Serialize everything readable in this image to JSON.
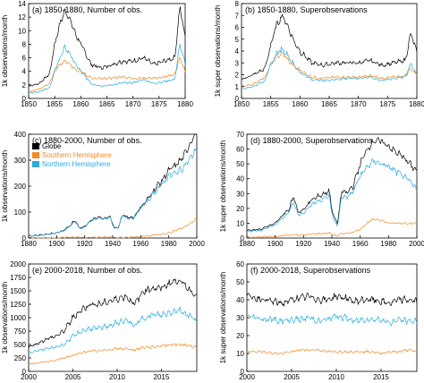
{
  "figure": {
    "legend": [
      {
        "label": "Globe",
        "color": "#000000"
      },
      {
        "label": "Southern Hemisphere",
        "color": "#f28c28"
      },
      {
        "label": "Northern Hemisphere",
        "color": "#29abe2"
      }
    ]
  },
  "chart_data": [
    {
      "type": "line",
      "title": "(a) 1850-1880, Number of obs.",
      "ylabel": "1k observations/month",
      "xlim": [
        1850,
        1880
      ],
      "ylim": [
        0,
        14
      ],
      "xticks": [
        1850,
        1855,
        1860,
        1865,
        1870,
        1875,
        1880
      ],
      "yticks": [
        0,
        2,
        4,
        6,
        8,
        10,
        12,
        14
      ],
      "x": [
        1850,
        1852,
        1854,
        1855,
        1856,
        1857,
        1858,
        1859,
        1860,
        1862,
        1864,
        1866,
        1868,
        1870,
        1872,
        1874,
        1876,
        1878,
        1879,
        1880
      ],
      "series": [
        {
          "name": "Globe",
          "color": "#000000",
          "values": [
            1.8,
            2.2,
            3.6,
            8.0,
            11.0,
            13.0,
            11.5,
            9.5,
            8.0,
            5.0,
            4.5,
            5.0,
            5.5,
            5.5,
            6.0,
            5.0,
            5.5,
            6.0,
            13.5,
            9.0
          ]
        },
        {
          "name": "Southern Hemisphere",
          "color": "#f28c28",
          "values": [
            1.0,
            1.4,
            2.2,
            4.0,
            5.0,
            5.5,
            5.0,
            4.2,
            4.0,
            3.0,
            3.0,
            3.0,
            3.2,
            3.0,
            3.0,
            3.0,
            3.2,
            3.5,
            6.0,
            4.0
          ]
        },
        {
          "name": "Northern Hemisphere",
          "color": "#29abe2",
          "values": [
            0.8,
            1.0,
            1.6,
            4.0,
            6.0,
            7.5,
            6.5,
            5.0,
            4.0,
            2.2,
            1.8,
            2.0,
            2.3,
            2.3,
            2.8,
            2.2,
            2.5,
            2.8,
            8.0,
            5.0
          ]
        }
      ]
    },
    {
      "type": "line",
      "title": "(b) 1850-1880, Superobservations",
      "ylabel": "1k super observations/month",
      "xlim": [
        1850,
        1880
      ],
      "ylim": [
        0,
        8
      ],
      "xticks": [
        1850,
        1855,
        1860,
        1865,
        1870,
        1875,
        1880
      ],
      "yticks": [
        0,
        1,
        2,
        3,
        4,
        5,
        6,
        7,
        8
      ],
      "x": [
        1850,
        1852,
        1854,
        1855,
        1856,
        1857,
        1858,
        1859,
        1860,
        1862,
        1864,
        1866,
        1868,
        1870,
        1872,
        1874,
        1876,
        1878,
        1879,
        1880
      ],
      "series": [
        {
          "name": "Globe",
          "color": "#000000",
          "values": [
            1.6,
            2.0,
            2.5,
            4.5,
            6.2,
            7.0,
            6.0,
            4.8,
            4.0,
            3.0,
            2.8,
            3.0,
            3.0,
            3.0,
            3.2,
            2.8,
            3.0,
            3.2,
            5.5,
            3.8
          ]
        },
        {
          "name": "Southern Hemisphere",
          "color": "#f28c28",
          "values": [
            1.0,
            1.2,
            1.8,
            2.8,
            3.5,
            3.8,
            3.2,
            2.7,
            2.4,
            1.8,
            1.7,
            1.8,
            1.8,
            1.8,
            1.9,
            1.7,
            1.8,
            1.9,
            2.5,
            2.0
          ]
        },
        {
          "name": "Northern Hemisphere",
          "color": "#29abe2",
          "values": [
            0.8,
            1.0,
            1.5,
            2.8,
            3.8,
            4.2,
            3.6,
            2.8,
            2.2,
            1.6,
            1.5,
            1.6,
            1.7,
            1.7,
            1.8,
            1.5,
            1.7,
            1.8,
            3.0,
            2.0
          ]
        }
      ]
    },
    {
      "type": "line",
      "title": "(c) 1880-2000, Number of obs.",
      "ylabel": "1k observations/month",
      "xlim": [
        1880,
        2000
      ],
      "ylim": [
        0,
        400
      ],
      "xticks": [
        1880,
        1900,
        1920,
        1940,
        1960,
        1980,
        2000
      ],
      "yticks": [
        0,
        100,
        200,
        300,
        400
      ],
      "legend_position": "top-left",
      "x": [
        1880,
        1890,
        1900,
        1905,
        1910,
        1913,
        1916,
        1919,
        1925,
        1930,
        1935,
        1938,
        1941,
        1944,
        1947,
        1950,
        1955,
        1960,
        1965,
        1970,
        1975,
        1980,
        1985,
        1990,
        1995,
        2000
      ],
      "series": [
        {
          "name": "Globe",
          "color": "#000000",
          "values": [
            8,
            12,
            20,
            30,
            50,
            70,
            40,
            40,
            70,
            80,
            75,
            85,
            40,
            40,
            90,
            80,
            80,
            120,
            150,
            190,
            220,
            260,
            280,
            310,
            360,
            420
          ]
        },
        {
          "name": "Southern Hemisphere",
          "color": "#f28c28",
          "values": [
            0,
            0,
            1,
            2,
            3,
            3,
            2,
            2,
            3,
            3,
            3,
            3,
            2,
            2,
            3,
            3,
            4,
            5,
            8,
            12,
            15,
            20,
            30,
            40,
            55,
            75
          ]
        },
        {
          "name": "Northern Hemisphere",
          "color": "#29abe2",
          "values": [
            8,
            12,
            19,
            28,
            47,
            67,
            38,
            38,
            67,
            77,
            72,
            82,
            38,
            38,
            87,
            77,
            76,
            115,
            142,
            178,
            205,
            240,
            250,
            270,
            305,
            345
          ]
        }
      ]
    },
    {
      "type": "line",
      "title": "(d) 1880-2000, Superobservations",
      "ylabel": "1k super observations/month",
      "xlim": [
        1880,
        2000
      ],
      "ylim": [
        0,
        70
      ],
      "xticks": [
        1880,
        1900,
        1920,
        1940,
        1960,
        1980,
        2000
      ],
      "yticks": [
        0,
        10,
        20,
        30,
        40,
        50,
        60,
        70
      ],
      "x": [
        1880,
        1890,
        1900,
        1905,
        1910,
        1913,
        1916,
        1919,
        1925,
        1930,
        1935,
        1938,
        1941,
        1944,
        1947,
        1950,
        1955,
        1960,
        1965,
        1970,
        1975,
        1980,
        1985,
        1990,
        1995,
        2000
      ],
      "series": [
        {
          "name": "Globe",
          "color": "#000000",
          "values": [
            5,
            6,
            10,
            15,
            20,
            28,
            18,
            18,
            25,
            28,
            30,
            32,
            15,
            10,
            32,
            30,
            35,
            50,
            60,
            66,
            65,
            62,
            58,
            55,
            50,
            45
          ]
        },
        {
          "name": "Southern Hemisphere",
          "color": "#f28c28",
          "values": [
            0.5,
            0.8,
            1,
            1.5,
            2,
            2.5,
            2,
            2,
            2.5,
            3,
            3,
            3.5,
            2,
            1.5,
            3,
            3,
            4,
            6,
            10,
            13,
            12,
            10,
            10,
            10,
            10,
            10
          ]
        },
        {
          "name": "Northern Hemisphere",
          "color": "#29abe2",
          "values": [
            4.5,
            5,
            9,
            13,
            18,
            25,
            16,
            16,
            22,
            25,
            27,
            28,
            13,
            8,
            29,
            27,
            31,
            42,
            48,
            52,
            50,
            48,
            45,
            42,
            38,
            33
          ]
        }
      ]
    },
    {
      "type": "line",
      "title": "(e) 2000-2018, Number of obs.",
      "ylabel": "1k observations/month",
      "xlim": [
        2000,
        2019
      ],
      "ylim": [
        0,
        2000
      ],
      "xticks": [
        2000,
        2005,
        2010,
        2015
      ],
      "yticks": [
        0,
        250,
        500,
        750,
        1000,
        1250,
        1500,
        1750,
        2000
      ],
      "x": [
        2000,
        2001,
        2002,
        2003,
        2004,
        2005,
        2006,
        2007,
        2008,
        2009,
        2010,
        2011,
        2012,
        2013,
        2014,
        2015,
        2016,
        2017,
        2018,
        2019
      ],
      "series": [
        {
          "name": "Globe",
          "color": "#000000",
          "values": [
            450,
            520,
            600,
            650,
            750,
            1000,
            1150,
            1250,
            1250,
            1300,
            1350,
            1400,
            1250,
            1500,
            1550,
            1550,
            1650,
            1700,
            1550,
            1400
          ]
        },
        {
          "name": "Southern Hemisphere",
          "color": "#f28c28",
          "values": [
            130,
            150,
            180,
            200,
            250,
            300,
            350,
            380,
            380,
            400,
            420,
            420,
            400,
            450,
            450,
            480,
            500,
            500,
            480,
            450
          ]
        },
        {
          "name": "Northern Hemisphere",
          "color": "#29abe2",
          "values": [
            350,
            380,
            420,
            450,
            500,
            650,
            750,
            800,
            800,
            850,
            900,
            950,
            850,
            1000,
            1050,
            1050,
            1100,
            1150,
            1050,
            950
          ]
        }
      ]
    },
    {
      "type": "line",
      "title": "(f) 2000-2018, Superobservations",
      "ylabel": "1k super observations/month",
      "xlim": [
        2000,
        2019
      ],
      "ylim": [
        0,
        60
      ],
      "xticks": [
        2000,
        2005,
        2010,
        2015
      ],
      "yticks": [
        0,
        10,
        20,
        30,
        40,
        50,
        60
      ],
      "x": [
        2000,
        2001,
        2002,
        2003,
        2004,
        2005,
        2006,
        2007,
        2008,
        2009,
        2010,
        2011,
        2012,
        2013,
        2014,
        2015,
        2016,
        2017,
        2018,
        2019
      ],
      "series": [
        {
          "name": "Globe",
          "color": "#000000",
          "values": [
            42,
            41,
            40,
            39,
            38,
            40,
            41,
            42,
            40,
            40,
            42,
            41,
            39,
            40,
            40,
            39,
            38,
            40,
            40,
            39
          ]
        },
        {
          "name": "Southern Hemisphere",
          "color": "#f28c28",
          "values": [
            11,
            11,
            11,
            10,
            10,
            11,
            12,
            12,
            12,
            11,
            11,
            11,
            11,
            11,
            11,
            10,
            11,
            11,
            12,
            11
          ]
        },
        {
          "name": "Northern Hemisphere",
          "color": "#29abe2",
          "values": [
            31,
            30,
            29,
            29,
            28,
            29,
            29,
            30,
            28,
            29,
            31,
            30,
            28,
            29,
            29,
            29,
            27,
            29,
            28,
            28
          ]
        }
      ]
    }
  ]
}
